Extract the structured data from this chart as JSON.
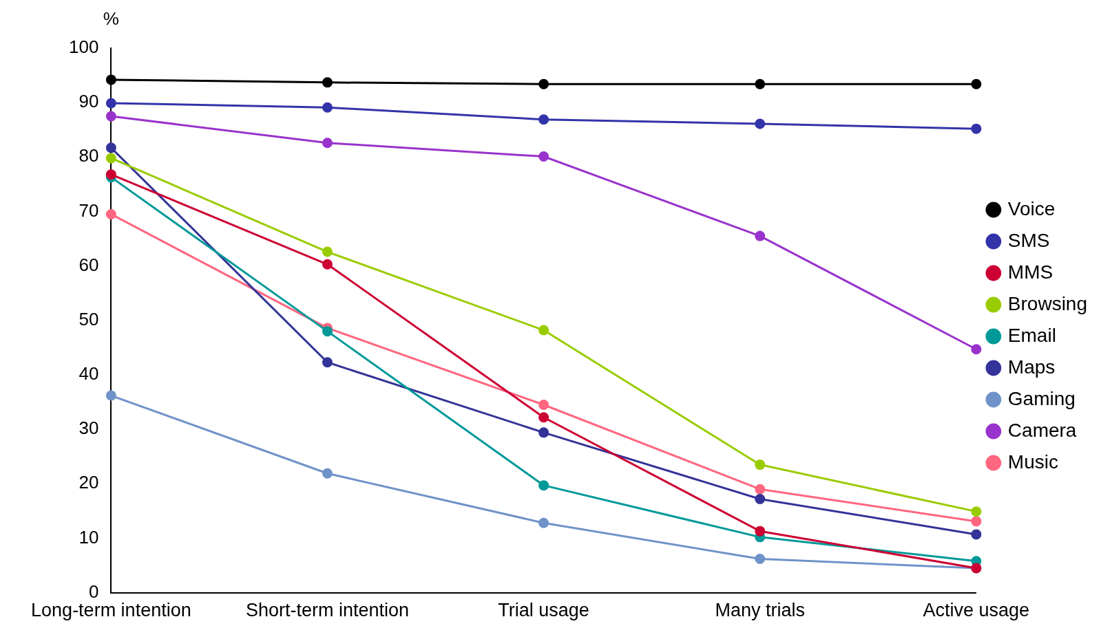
{
  "chart_data": {
    "type": "line",
    "ylabel": "%",
    "categories": [
      "Long-term intention",
      "Short-term intention",
      "Trial usage",
      "Many trials",
      "Active usage"
    ],
    "ylim": [
      0,
      100
    ],
    "yticks": [
      0,
      10,
      20,
      30,
      40,
      50,
      60,
      70,
      80,
      90,
      100
    ],
    "grid": false,
    "legend": "right",
    "marker": "circle",
    "line_style": "solid",
    "series": [
      {
        "name": "Voice",
        "color": "#000000",
        "values": [
          94.2,
          93.7,
          93.4,
          93.4,
          93.4
        ]
      },
      {
        "name": "SMS",
        "color": "#3333aa",
        "values": [
          89.9,
          89.1,
          86.9,
          86.1,
          85.2
        ]
      },
      {
        "name": "MMS",
        "color": "#cc0033",
        "values": [
          76.8,
          60.3,
          32.2,
          11.3,
          4.5
        ]
      },
      {
        "name": "Browsing",
        "color": "#99cc00",
        "values": [
          79.8,
          62.6,
          48.2,
          23.5,
          14.9
        ]
      },
      {
        "name": "Email",
        "color": "#009999",
        "values": [
          76.3,
          48.0,
          19.7,
          10.2,
          5.8
        ]
      },
      {
        "name": "Maps",
        "color": "#333399",
        "values": [
          81.7,
          42.3,
          29.4,
          17.2,
          10.7
        ]
      },
      {
        "name": "Gaming",
        "color": "#6f93c8",
        "values": [
          36.2,
          21.9,
          12.8,
          6.2,
          4.5
        ]
      },
      {
        "name": "Camera",
        "color": "#9933cc",
        "values": [
          87.5,
          82.6,
          80.1,
          65.5,
          44.7
        ]
      },
      {
        "name": "Music",
        "color": "#ff6680",
        "values": [
          69.5,
          48.6,
          34.5,
          19.0,
          13.1
        ]
      }
    ]
  }
}
